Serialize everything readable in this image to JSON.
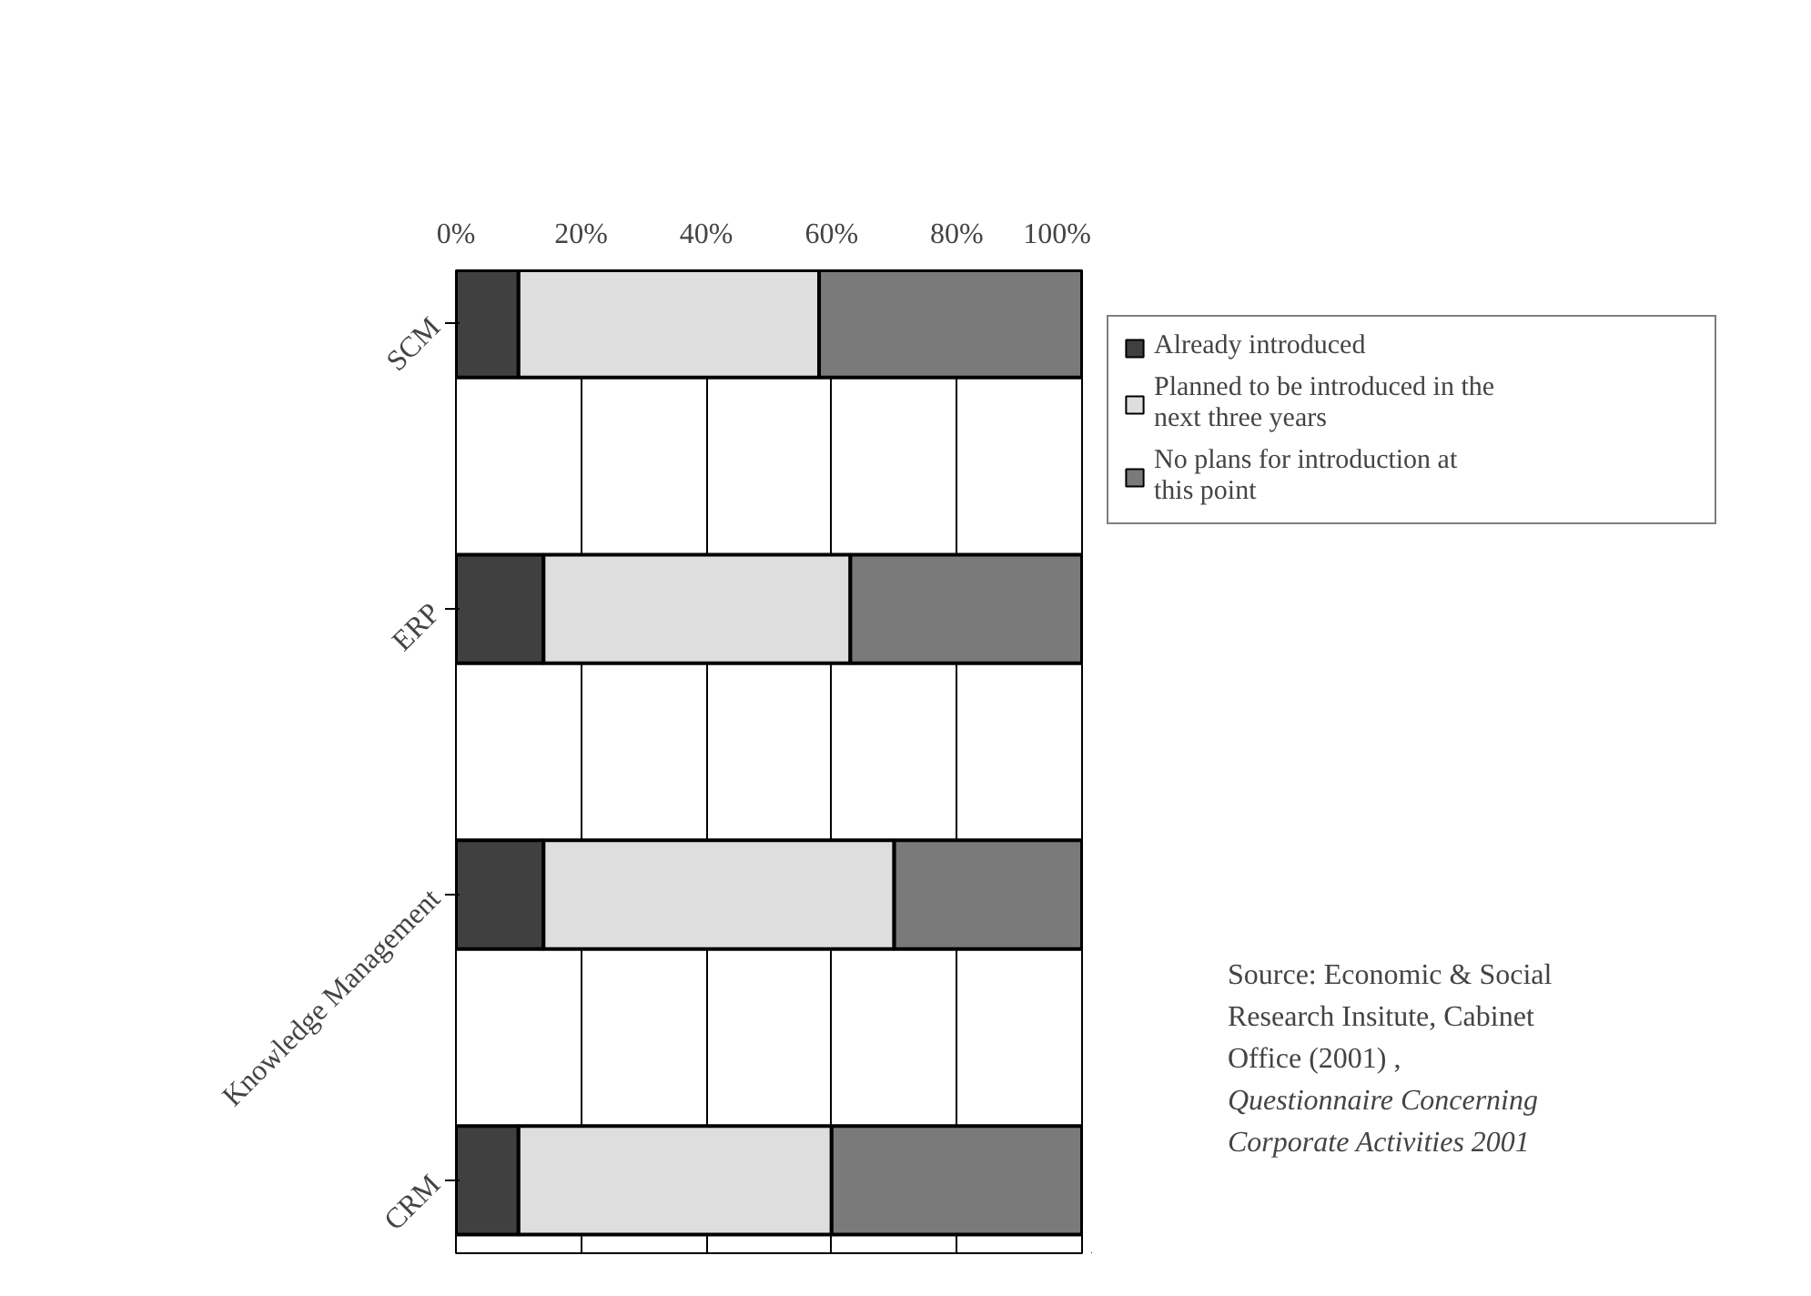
{
  "chart_data": {
    "type": "bar",
    "orientation": "horizontal",
    "stacked": true,
    "categories": [
      "SCM",
      "ERP",
      "Knowledge Management",
      "CRM"
    ],
    "series": [
      {
        "name": "Already introduced",
        "color": "#404040",
        "values": [
          10,
          14,
          14,
          10
        ]
      },
      {
        "name": "Planned to be introduced in the next three years",
        "color": "#dedede",
        "values": [
          48,
          49,
          56,
          50
        ]
      },
      {
        "name": "No plans for introduction at this point",
        "color": "#7a7a7a",
        "values": [
          42,
          37,
          30,
          40
        ]
      }
    ],
    "xlim": [
      0,
      100
    ],
    "xticks": [
      {
        "value": 0,
        "label": "0%"
      },
      {
        "value": 20,
        "label": "20%"
      },
      {
        "value": 40,
        "label": "40%"
      },
      {
        "value": 60,
        "label": "60%"
      },
      {
        "value": 80,
        "label": "80%"
      },
      {
        "value": 100,
        "label": "100%"
      }
    ],
    "grid": "x",
    "legend": "top right",
    "annotations": [
      "Source: Economic & Social Research Insitute, Cabinet Office (2001) ,",
      "Questionnaire Concerning Corporate Activities 2001"
    ]
  }
}
